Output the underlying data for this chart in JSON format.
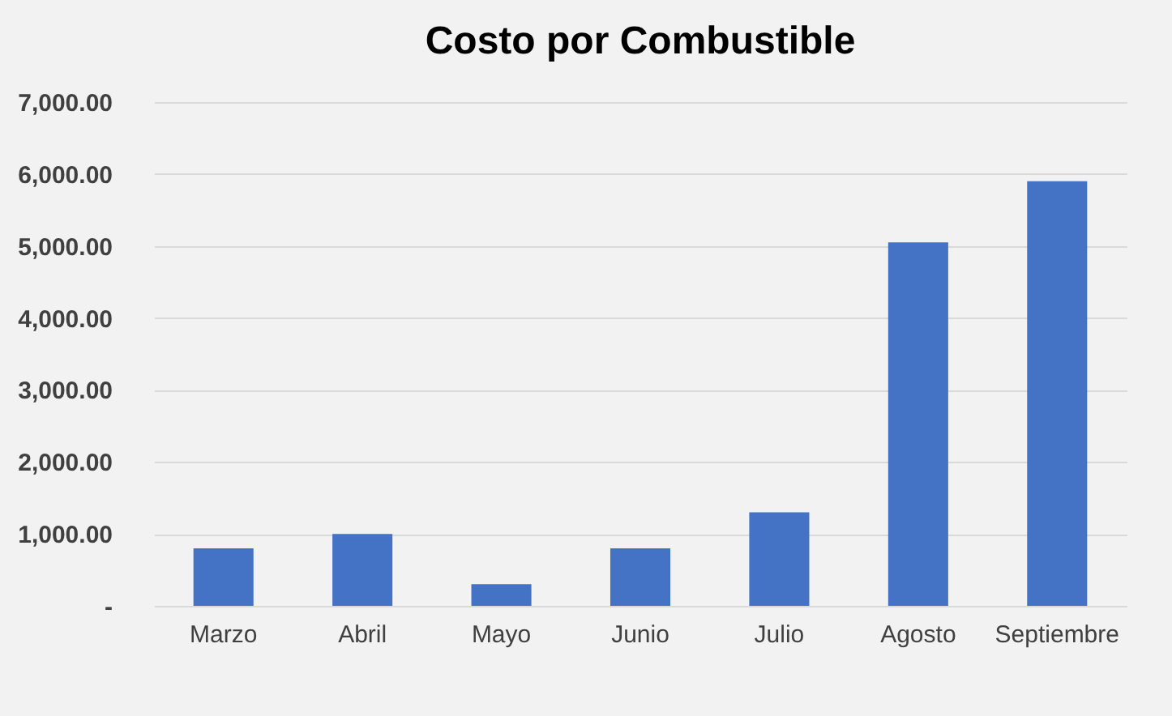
{
  "chart_data": {
    "type": "bar",
    "title": "Costo por Combustible",
    "categories": [
      "Marzo",
      "Abril",
      "Mayo",
      "Junio",
      "Julio",
      "Agosto",
      "Septiembre"
    ],
    "values": [
      800,
      1000,
      300,
      800,
      1300,
      5050,
      5900
    ],
    "color": "#4472c4",
    "ylim": [
      0,
      7000
    ],
    "yticks": [
      {
        "value": 0,
        "label": "-"
      },
      {
        "value": 1000,
        "label": "1,000.00"
      },
      {
        "value": 2000,
        "label": "2,000.00"
      },
      {
        "value": 3000,
        "label": "3,000.00"
      },
      {
        "value": 4000,
        "label": "4,000.00"
      },
      {
        "value": 5000,
        "label": "5,000.00"
      },
      {
        "value": 6000,
        "label": "6,000.00"
      },
      {
        "value": 7000,
        "label": "7,000.00"
      }
    ],
    "grid": "y",
    "legend": false
  }
}
